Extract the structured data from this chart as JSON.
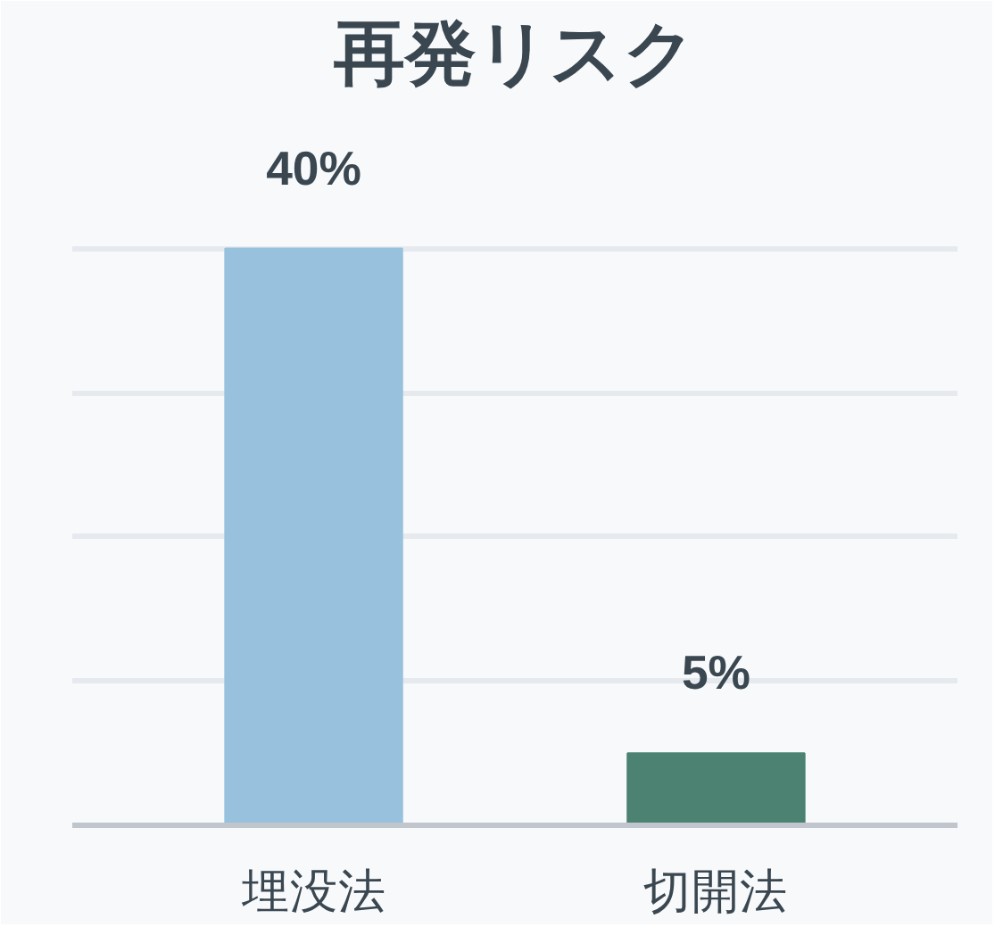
{
  "chart_data": {
    "type": "bar",
    "title": "再発リスク",
    "categories": [
      "埋没法",
      "切開法"
    ],
    "values": [
      40,
      5
    ],
    "colors": [
      "#97c1dc",
      "#4b8271"
    ],
    "value_labels": [
      "40%",
      "5%"
    ],
    "ylim": [
      0,
      50
    ],
    "yticks": [
      {
        "value": 0,
        "label": null
      },
      {
        "value": 10,
        "label": null
      },
      {
        "value": 20,
        "label": null
      },
      {
        "value": 30,
        "label": null
      },
      {
        "value": 40,
        "label": null
      },
      {
        "value": 50,
        "label": null
      }
    ],
    "grid": "y"
  }
}
